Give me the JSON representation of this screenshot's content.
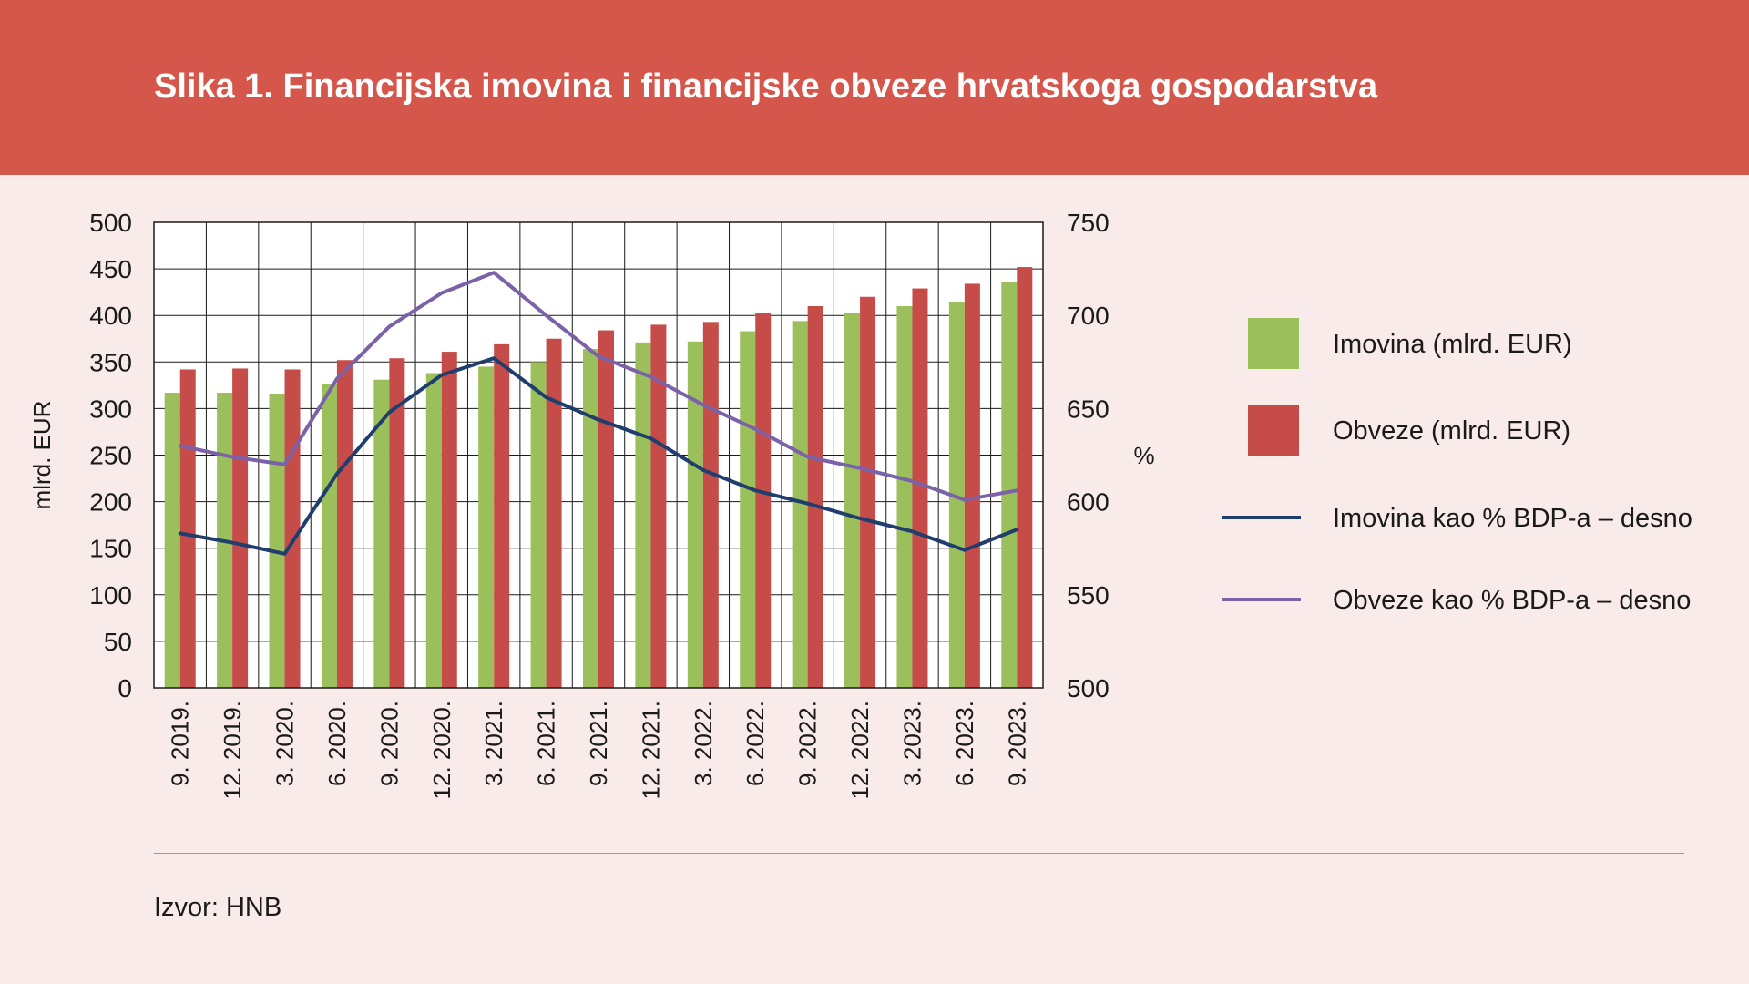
{
  "header": {
    "title": "Slika 1. Financijska imovina i financijske obveze hrvatskoga gospodarstva"
  },
  "footer": {
    "source": "Izvor: HNB"
  },
  "colors": {
    "header_bg": "#d5564b",
    "page_bg": "#f8ebe9",
    "imovina_bar": "#9bbf5a",
    "obveze_bar": "#c64c49",
    "imovina_line": "#1f3e6e",
    "obveze_line": "#7b62a8"
  },
  "chart_data": {
    "type": "bar",
    "categories": [
      "9. 2019.",
      "12. 2019.",
      "3. 2020.",
      "6. 2020.",
      "9. 2020.",
      "12. 2020.",
      "3. 2021.",
      "6. 2021.",
      "9. 2021.",
      "12. 2021.",
      "3. 2022.",
      "6. 2022.",
      "9. 2022.",
      "12. 2022.",
      "3. 2023.",
      "6. 2023.",
      "9. 2023."
    ],
    "ylabel": "mlrd. EUR",
    "ylim": [
      0,
      500
    ],
    "yticks": [
      "0",
      "50",
      "100",
      "150",
      "200",
      "250",
      "300",
      "350",
      "400",
      "450",
      "500"
    ],
    "y2label": "%",
    "y2lim": [
      500,
      750
    ],
    "y2ticks": [
      "500",
      "550",
      "600",
      "650",
      "700",
      "750"
    ],
    "grid": true,
    "legend_position": "right",
    "series": [
      {
        "name": "Imovina (mlrd. EUR)",
        "type": "bar",
        "axis": "left",
        "color": "#9bbf5a",
        "values": [
          317,
          317,
          316,
          326,
          331,
          338,
          345,
          350,
          364,
          371,
          372,
          383,
          394,
          403,
          410,
          414,
          436
        ]
      },
      {
        "name": "Obveze (mlrd. EUR)",
        "type": "bar",
        "axis": "left",
        "color": "#c64c49",
        "values": [
          342,
          343,
          342,
          352,
          354,
          361,
          369,
          375,
          384,
          390,
          393,
          403,
          410,
          420,
          429,
          434,
          452
        ]
      },
      {
        "name": "Imovina kao % BDP-a – desno",
        "type": "line",
        "axis": "right",
        "color": "#1f3e6e",
        "values": [
          583,
          578,
          572,
          615,
          648,
          668,
          677,
          656,
          644,
          634,
          617,
          606,
          599,
          591,
          584,
          574,
          585
        ]
      },
      {
        "name": "Obveze kao % BDP-a – desno",
        "type": "line",
        "axis": "right",
        "color": "#7b62a8",
        "values": [
          630,
          624,
          620,
          666,
          694,
          712,
          723,
          700,
          678,
          667,
          652,
          639,
          624,
          618,
          611,
          601,
          606
        ]
      }
    ]
  }
}
